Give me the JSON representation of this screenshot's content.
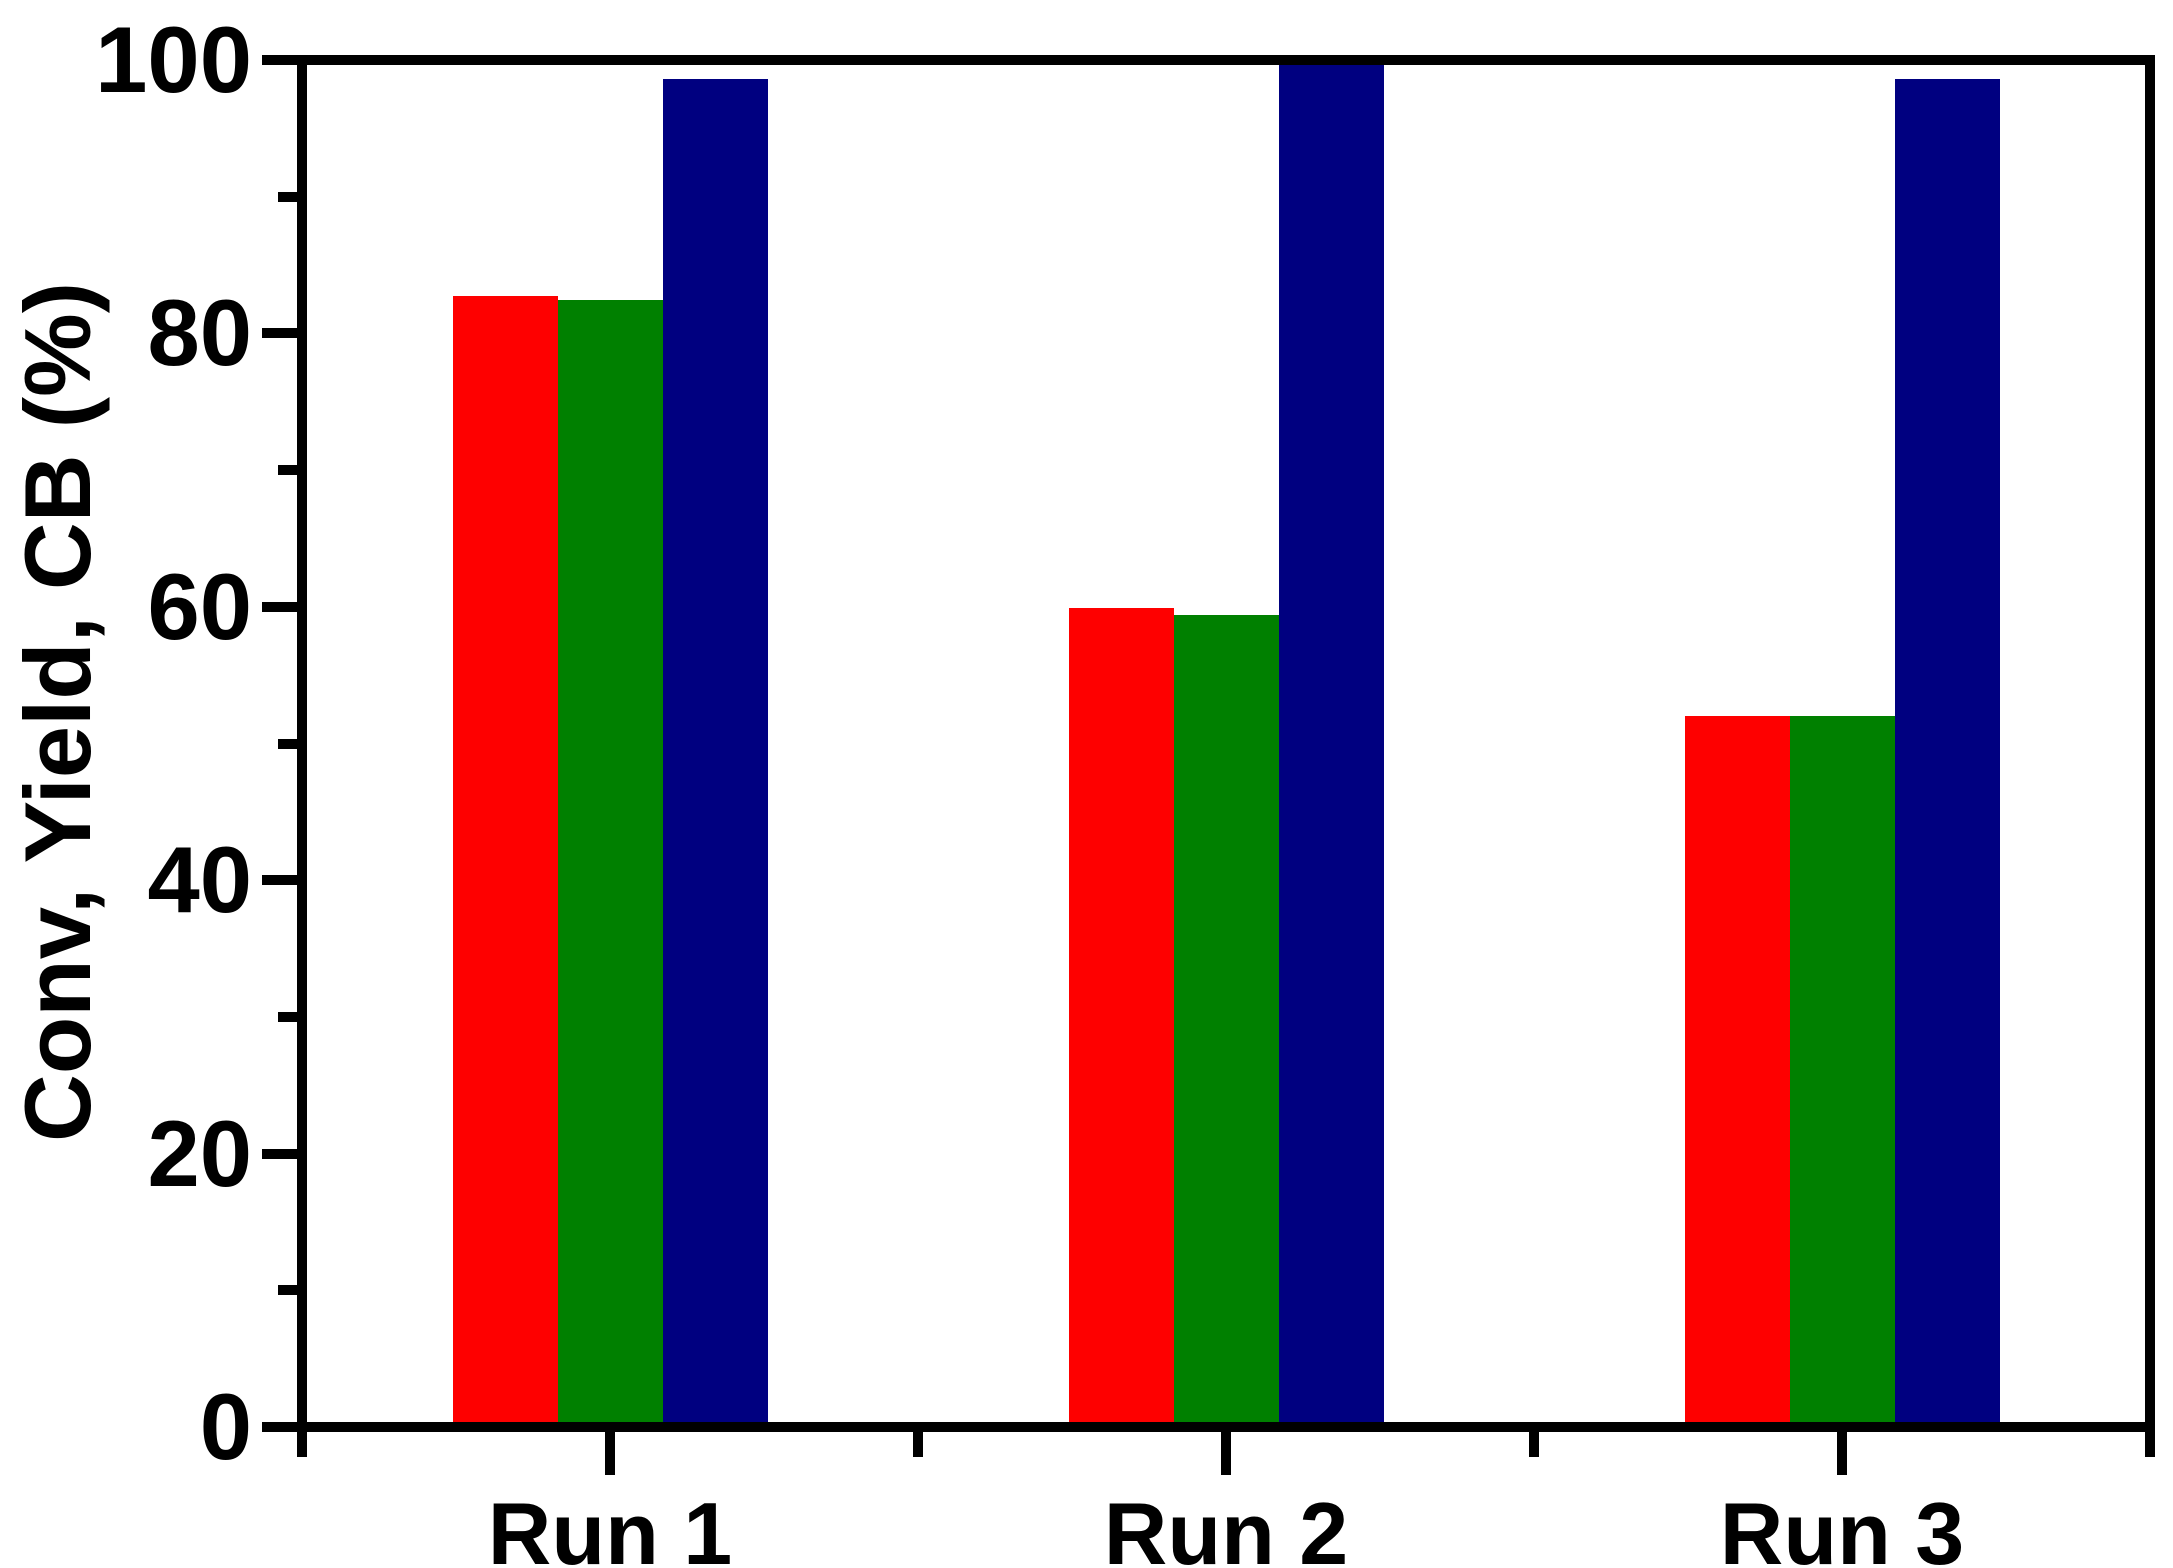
{
  "chart_data": {
    "type": "bar",
    "title": "",
    "categories": [
      "Run 1",
      "Run 2",
      "Run 3"
    ],
    "series": [
      {
        "name": "Conv",
        "color": "#fe0000",
        "values": [
          83,
          60,
          52
        ]
      },
      {
        "name": "Yield",
        "color": "#008000",
        "values": [
          82.7,
          59.5,
          52
        ]
      },
      {
        "name": "CB",
        "color": "#000080",
        "values": [
          99,
          100,
          99
        ]
      }
    ],
    "xlabel": "",
    "ylabel": "Conv, Yield, CB (%)",
    "ylim": [
      0,
      100
    ],
    "yticks": [
      0,
      20,
      40,
      60,
      80,
      100
    ],
    "ytick_labels": [
      "0",
      "20",
      "40",
      "60",
      "80",
      "100"
    ],
    "yminorticks": [
      10,
      30,
      50,
      70,
      90
    ],
    "grid": false,
    "legend": "none",
    "axis_color": "#000000",
    "background_color": "#ffffff"
  }
}
